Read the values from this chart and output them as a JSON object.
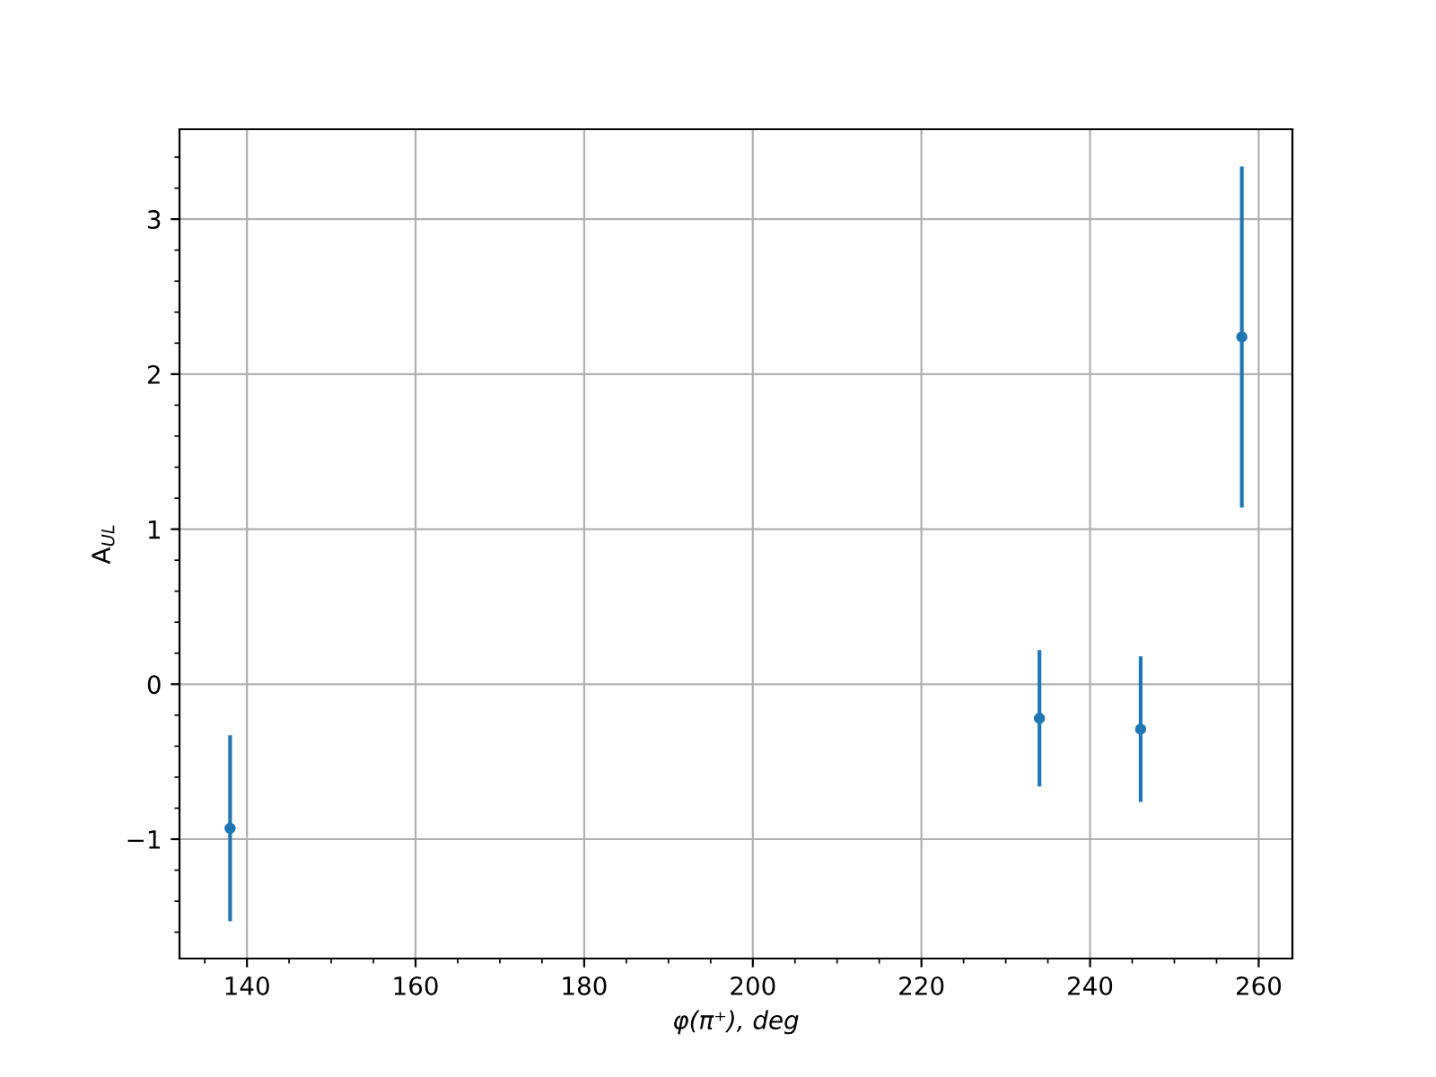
{
  "chart_data": {
    "type": "scatter",
    "xlabel": "φ(π⁺), deg",
    "ylabel": "A$_{UL}$",
    "x": [
      138,
      234,
      246,
      258
    ],
    "series": [
      {
        "color": "#1f77b4",
        "values": [
          -0.93,
          -0.22,
          -0.29,
          2.24
        ],
        "errors": [
          0.6,
          0.44,
          0.47,
          1.1
        ]
      }
    ],
    "xlim": [
      132,
      264
    ],
    "xticks": [
      140,
      160,
      180,
      200,
      220,
      240,
      260
    ],
    "ylim": [
      -1.77,
      3.58
    ],
    "yticks": [
      {
        "value": -1,
        "label": "−1"
      },
      0,
      1,
      2,
      3
    ],
    "grid": true,
    "marker": "circle"
  }
}
